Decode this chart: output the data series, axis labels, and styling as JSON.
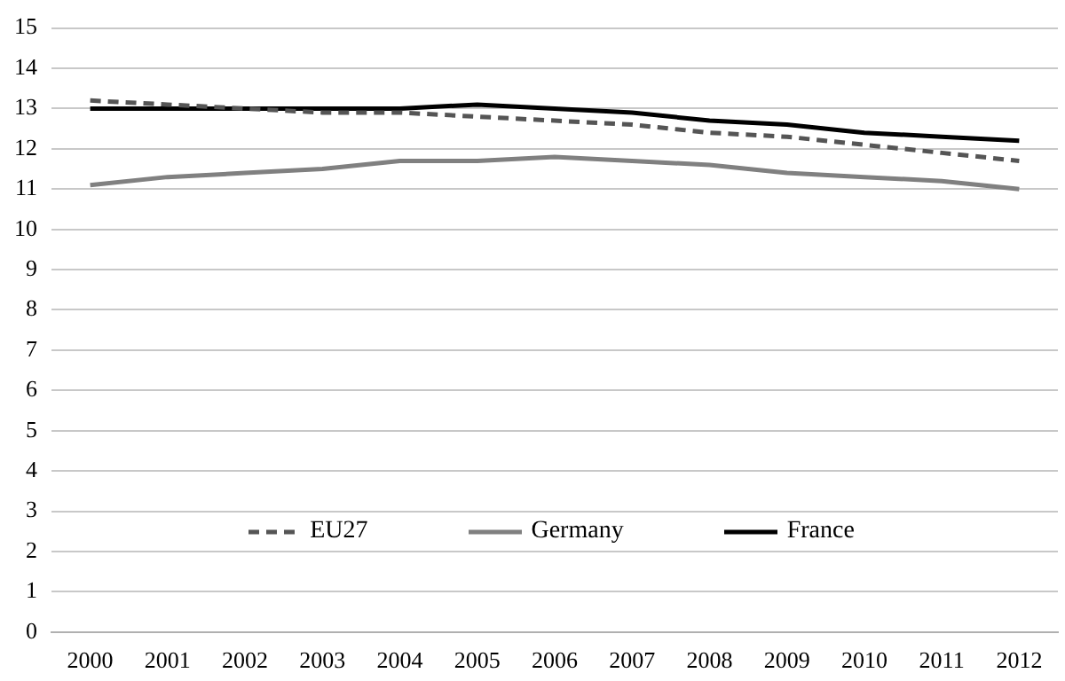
{
  "chart_data": {
    "type": "line",
    "categories": [
      "2000",
      "2001",
      "2002",
      "2003",
      "2004",
      "2005",
      "2006",
      "2007",
      "2008",
      "2009",
      "2010",
      "2011",
      "2012"
    ],
    "series": [
      {
        "name": "EU27",
        "color": "#555555",
        "line_style": "dashed",
        "values": [
          13.2,
          13.1,
          13.0,
          12.9,
          12.9,
          12.8,
          12.7,
          12.6,
          12.4,
          12.3,
          12.1,
          11.9,
          11.7
        ]
      },
      {
        "name": "Germany",
        "color": "#808080",
        "line_style": "solid",
        "values": [
          11.1,
          11.3,
          11.4,
          11.5,
          11.7,
          11.7,
          11.8,
          11.7,
          11.6,
          11.4,
          11.3,
          11.2,
          11.0
        ]
      },
      {
        "name": "France",
        "color": "#000000",
        "line_style": "solid",
        "values": [
          13.0,
          13.0,
          13.0,
          13.0,
          13.0,
          13.1,
          13.0,
          12.9,
          12.7,
          12.6,
          12.4,
          12.3,
          12.2
        ]
      }
    ],
    "ylim": [
      0,
      15
    ],
    "yticks": [
      0,
      1,
      2,
      3,
      4,
      5,
      6,
      7,
      8,
      9,
      10,
      11,
      12,
      13,
      14,
      15
    ],
    "grid": "y",
    "legend": "bottom",
    "marker": "none"
  }
}
